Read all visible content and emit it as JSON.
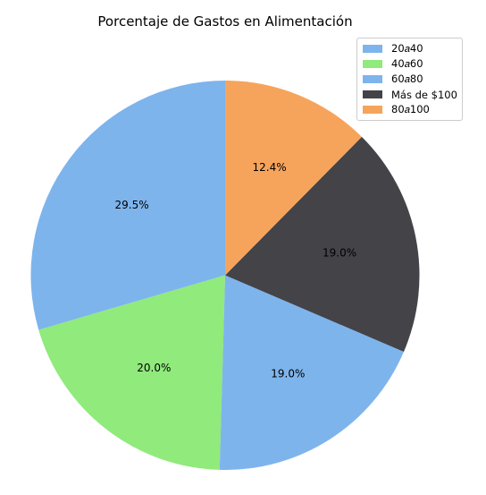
{
  "chart_data": {
    "type": "pie",
    "title": "Porcentaje de Gastos en Alimentación",
    "categories": [
      "$20a$40",
      "$40a$60",
      "$60a$80",
      "Más de $100",
      "$80a$100"
    ],
    "values": [
      29.5,
      20.0,
      19.0,
      19.0,
      12.4
    ],
    "labels": [
      "29.5%",
      "20.0%",
      "19.0%",
      "19.0%",
      "12.4%"
    ],
    "colors": [
      "#7eb4ec",
      "#90ea7c",
      "#7eb4ec",
      "#434348",
      "#f6a45c"
    ],
    "start_angle_deg": 90,
    "direction": "counterclockwise",
    "legend": {
      "position": "top-right",
      "entries": [
        {
          "label": "20𝑎40",
          "color": "#7eb4ec"
        },
        {
          "label": "40𝑎60",
          "color": "#90ea7c"
        },
        {
          "label": "60𝑎80",
          "color": "#7eb4ec"
        },
        {
          "label": "Más de $100",
          "color": "#434348"
        },
        {
          "label": "80𝑎100",
          "color": "#f6a45c"
        }
      ]
    }
  }
}
